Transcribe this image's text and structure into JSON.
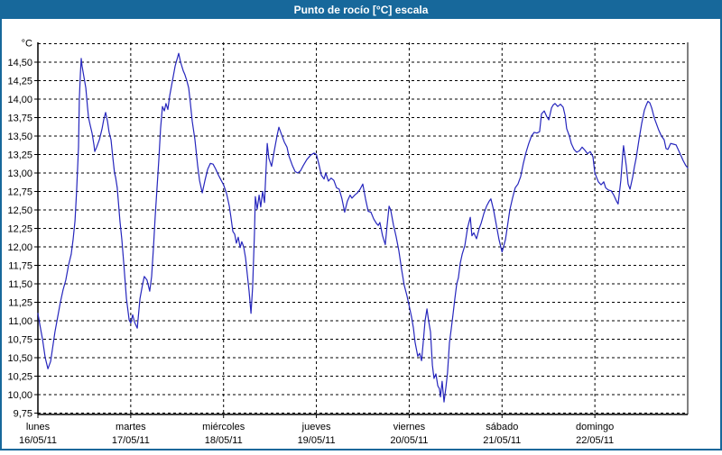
{
  "window": {
    "title": "Punto de rocío [°C] escala"
  },
  "colors": {
    "frame": "#17689B",
    "titlebar": "#17689B",
    "title_text": "#FFFFFF",
    "line": "#2626BD",
    "grid": "#000000",
    "text": "#000000",
    "plot_bg": "#FFFFFF"
  },
  "chart_data": {
    "type": "line",
    "title": "Punto de rocío [°C] escala",
    "y_unit_label": "°C",
    "decimal_separator": ",",
    "grid": "dashed",
    "legend": "none",
    "y_axis": {
      "min": 9.75,
      "max": 14.75,
      "tick_step": 0.25
    },
    "y_tick_labels": [
      "14,50",
      "14,25",
      "14,00",
      "13,75",
      "13,50",
      "13,25",
      "13,00",
      "12,75",
      "12,50",
      "12,25",
      "12,00",
      "11,75",
      "11,50",
      "11,25",
      "11,00",
      "10,75",
      "10,50",
      "10,25",
      "10,00",
      "9,75"
    ],
    "x_axis": {
      "hours_total": 168,
      "days": [
        {
          "name": "lunes",
          "date": "16/05/11"
        },
        {
          "name": "martes",
          "date": "17/05/11"
        },
        {
          "name": "miércoles",
          "date": "18/05/11"
        },
        {
          "name": "jueves",
          "date": "19/05/11"
        },
        {
          "name": "viernes",
          "date": "20/05/11"
        },
        {
          "name": "sábado",
          "date": "21/05/11"
        },
        {
          "name": "domingo",
          "date": "22/05/11"
        }
      ]
    },
    "series": [
      {
        "name": "Punto de rocío",
        "unit": "°C",
        "points": [
          [
            0.0,
            11.1
          ],
          [
            0.5,
            10.95
          ],
          [
            1.2,
            10.75
          ],
          [
            1.9,
            10.5
          ],
          [
            2.6,
            10.35
          ],
          [
            3.3,
            10.45
          ],
          [
            3.7,
            10.6
          ],
          [
            4.4,
            10.85
          ],
          [
            5.1,
            11.05
          ],
          [
            5.8,
            11.25
          ],
          [
            6.5,
            11.42
          ],
          [
            7.2,
            11.55
          ],
          [
            7.9,
            11.75
          ],
          [
            8.6,
            11.9
          ],
          [
            9.1,
            12.1
          ],
          [
            9.6,
            12.35
          ],
          [
            10.0,
            12.76
          ],
          [
            10.5,
            13.35
          ],
          [
            10.7,
            14.0
          ],
          [
            11.0,
            14.35
          ],
          [
            11.2,
            14.55
          ],
          [
            11.4,
            14.45
          ],
          [
            11.9,
            14.3
          ],
          [
            12.4,
            14.15
          ],
          [
            12.8,
            13.9
          ],
          [
            13.1,
            13.75
          ],
          [
            13.5,
            13.65
          ],
          [
            14.0,
            13.54
          ],
          [
            14.5,
            13.38
          ],
          [
            14.7,
            13.29
          ],
          [
            15.2,
            13.35
          ],
          [
            15.9,
            13.45
          ],
          [
            16.6,
            13.6
          ],
          [
            17.0,
            13.72
          ],
          [
            17.5,
            13.82
          ],
          [
            18.0,
            13.7
          ],
          [
            18.4,
            13.55
          ],
          [
            18.9,
            13.45
          ],
          [
            19.4,
            13.2
          ],
          [
            19.8,
            13.0
          ],
          [
            20.1,
            12.94
          ],
          [
            20.5,
            12.8
          ],
          [
            21.2,
            12.35
          ],
          [
            21.7,
            12.1
          ],
          [
            22.2,
            11.78
          ],
          [
            22.9,
            11.3
          ],
          [
            23.6,
            11.01
          ],
          [
            24.0,
            10.97
          ],
          [
            24.5,
            11.08
          ],
          [
            25.0,
            10.98
          ],
          [
            25.7,
            10.9
          ],
          [
            26.4,
            11.3
          ],
          [
            27.1,
            11.5
          ],
          [
            27.5,
            11.6
          ],
          [
            28.2,
            11.55
          ],
          [
            28.9,
            11.4
          ],
          [
            29.4,
            11.6
          ],
          [
            29.9,
            12.0
          ],
          [
            30.3,
            12.4
          ],
          [
            30.8,
            12.8
          ],
          [
            31.3,
            13.2
          ],
          [
            31.7,
            13.6
          ],
          [
            32.2,
            13.9
          ],
          [
            32.7,
            13.84
          ],
          [
            33.1,
            13.94
          ],
          [
            33.6,
            13.86
          ],
          [
            34.1,
            14.05
          ],
          [
            34.8,
            14.25
          ],
          [
            35.5,
            14.45
          ],
          [
            36.2,
            14.58
          ],
          [
            36.4,
            14.62
          ],
          [
            36.9,
            14.5
          ],
          [
            37.6,
            14.38
          ],
          [
            38.0,
            14.33
          ],
          [
            38.5,
            14.25
          ],
          [
            39.0,
            14.15
          ],
          [
            39.4,
            13.95
          ],
          [
            39.9,
            13.7
          ],
          [
            40.6,
            13.45
          ],
          [
            41.3,
            13.1
          ],
          [
            41.8,
            12.9
          ],
          [
            42.5,
            12.73
          ],
          [
            43.2,
            12.9
          ],
          [
            43.9,
            13.05
          ],
          [
            44.6,
            13.13
          ],
          [
            45.3,
            13.12
          ],
          [
            46.0,
            13.05
          ],
          [
            46.7,
            12.97
          ],
          [
            47.4,
            12.9
          ],
          [
            48.0,
            12.84
          ],
          [
            48.8,
            12.72
          ],
          [
            49.5,
            12.55
          ],
          [
            49.9,
            12.4
          ],
          [
            50.4,
            12.21
          ],
          [
            50.9,
            12.17
          ],
          [
            51.3,
            12.05
          ],
          [
            51.8,
            12.13
          ],
          [
            52.3,
            11.99
          ],
          [
            52.7,
            12.07
          ],
          [
            53.2,
            12.0
          ],
          [
            53.7,
            11.85
          ],
          [
            54.1,
            11.64
          ],
          [
            54.6,
            11.4
          ],
          [
            55.1,
            11.1
          ],
          [
            55.5,
            11.45
          ],
          [
            56.0,
            12.2
          ],
          [
            56.2,
            12.68
          ],
          [
            56.7,
            12.51
          ],
          [
            57.2,
            12.7
          ],
          [
            57.6,
            12.54
          ],
          [
            58.1,
            12.75
          ],
          [
            58.6,
            12.6
          ],
          [
            59.3,
            13.4
          ],
          [
            59.7,
            13.2
          ],
          [
            60.4,
            13.09
          ],
          [
            61.1,
            13.3
          ],
          [
            61.8,
            13.5
          ],
          [
            62.3,
            13.62
          ],
          [
            63.0,
            13.52
          ],
          [
            63.7,
            13.42
          ],
          [
            64.4,
            13.35
          ],
          [
            64.9,
            13.23
          ],
          [
            65.8,
            13.1
          ],
          [
            66.5,
            13.02
          ],
          [
            67.2,
            13.0
          ],
          [
            67.9,
            13.03
          ],
          [
            68.6,
            13.1
          ],
          [
            69.5,
            13.18
          ],
          [
            70.5,
            13.24
          ],
          [
            71.4,
            13.27
          ],
          [
            72.0,
            13.25
          ],
          [
            72.6,
            13.13
          ],
          [
            73.3,
            12.97
          ],
          [
            74.0,
            12.92
          ],
          [
            74.4,
            13.0
          ],
          [
            75.1,
            12.89
          ],
          [
            75.8,
            12.93
          ],
          [
            76.5,
            12.9
          ],
          [
            77.2,
            12.8
          ],
          [
            77.9,
            12.78
          ],
          [
            78.6,
            12.65
          ],
          [
            79.3,
            12.47
          ],
          [
            80.0,
            12.62
          ],
          [
            80.7,
            12.7
          ],
          [
            81.2,
            12.66
          ],
          [
            81.9,
            12.7
          ],
          [
            82.6,
            12.73
          ],
          [
            83.3,
            12.78
          ],
          [
            84.0,
            12.85
          ],
          [
            84.7,
            12.65
          ],
          [
            85.4,
            12.48
          ],
          [
            86.1,
            12.47
          ],
          [
            86.8,
            12.38
          ],
          [
            87.5,
            12.32
          ],
          [
            88.0,
            12.29
          ],
          [
            88.4,
            12.33
          ],
          [
            89.1,
            12.15
          ],
          [
            89.8,
            12.03
          ],
          [
            90.3,
            12.3
          ],
          [
            90.8,
            12.55
          ],
          [
            91.2,
            12.5
          ],
          [
            91.9,
            12.3
          ],
          [
            92.6,
            12.14
          ],
          [
            93.3,
            11.95
          ],
          [
            94.0,
            11.7
          ],
          [
            94.7,
            11.48
          ],
          [
            95.4,
            11.34
          ],
          [
            96.0,
            11.2
          ],
          [
            96.6,
            11.05
          ],
          [
            97.1,
            10.9
          ],
          [
            97.5,
            10.71
          ],
          [
            98.2,
            10.52
          ],
          [
            98.7,
            10.56
          ],
          [
            99.2,
            10.46
          ],
          [
            99.6,
            10.7
          ],
          [
            100.1,
            11.0
          ],
          [
            100.6,
            11.16
          ],
          [
            101.0,
            11.0
          ],
          [
            101.5,
            10.85
          ],
          [
            102.0,
            10.4
          ],
          [
            102.4,
            10.22
          ],
          [
            102.9,
            10.28
          ],
          [
            103.4,
            10.12
          ],
          [
            103.8,
            10.08
          ],
          [
            104.1,
            9.97
          ],
          [
            104.5,
            10.18
          ],
          [
            105.0,
            9.9
          ],
          [
            105.5,
            10.1
          ],
          [
            105.9,
            10.3
          ],
          [
            106.4,
            10.7
          ],
          [
            106.9,
            10.9
          ],
          [
            107.3,
            11.08
          ],
          [
            107.8,
            11.3
          ],
          [
            108.3,
            11.5
          ],
          [
            108.7,
            11.58
          ],
          [
            109.2,
            11.78
          ],
          [
            109.7,
            11.9
          ],
          [
            110.4,
            12.02
          ],
          [
            111.1,
            12.26
          ],
          [
            111.8,
            12.4
          ],
          [
            112.2,
            12.15
          ],
          [
            112.7,
            12.19
          ],
          [
            113.4,
            12.11
          ],
          [
            114.1,
            12.25
          ],
          [
            114.6,
            12.32
          ],
          [
            115.3,
            12.45
          ],
          [
            116.0,
            12.55
          ],
          [
            116.7,
            12.62
          ],
          [
            117.1,
            12.65
          ],
          [
            117.8,
            12.5
          ],
          [
            118.5,
            12.3
          ],
          [
            119.2,
            12.1
          ],
          [
            120.0,
            11.93
          ],
          [
            120.9,
            12.1
          ],
          [
            121.3,
            12.25
          ],
          [
            122.0,
            12.5
          ],
          [
            122.7,
            12.66
          ],
          [
            123.4,
            12.8
          ],
          [
            124.1,
            12.85
          ],
          [
            124.8,
            12.95
          ],
          [
            125.5,
            13.13
          ],
          [
            126.2,
            13.28
          ],
          [
            126.9,
            13.4
          ],
          [
            127.6,
            13.5
          ],
          [
            128.3,
            13.55
          ],
          [
            129.0,
            13.54
          ],
          [
            129.7,
            13.56
          ],
          [
            130.2,
            13.8
          ],
          [
            130.9,
            13.84
          ],
          [
            131.6,
            13.76
          ],
          [
            132.1,
            13.72
          ],
          [
            132.8,
            13.88
          ],
          [
            133.2,
            13.92
          ],
          [
            133.7,
            13.94
          ],
          [
            134.4,
            13.9
          ],
          [
            135.1,
            13.93
          ],
          [
            135.8,
            13.89
          ],
          [
            136.3,
            13.78
          ],
          [
            136.7,
            13.6
          ],
          [
            137.4,
            13.5
          ],
          [
            137.9,
            13.4
          ],
          [
            138.6,
            13.32
          ],
          [
            139.3,
            13.28
          ],
          [
            140.0,
            13.3
          ],
          [
            140.7,
            13.35
          ],
          [
            141.4,
            13.31
          ],
          [
            142.1,
            13.26
          ],
          [
            142.8,
            13.29
          ],
          [
            143.5,
            13.22
          ],
          [
            144.0,
            13.0
          ],
          [
            144.9,
            12.88
          ],
          [
            145.6,
            12.84
          ],
          [
            146.3,
            12.88
          ],
          [
            146.8,
            12.8
          ],
          [
            147.5,
            12.77
          ],
          [
            148.2,
            12.76
          ],
          [
            148.9,
            12.7
          ],
          [
            149.6,
            12.62
          ],
          [
            150.0,
            12.58
          ],
          [
            150.7,
            12.9
          ],
          [
            151.2,
            13.25
          ],
          [
            151.4,
            13.37
          ],
          [
            152.1,
            13.1
          ],
          [
            152.6,
            12.85
          ],
          [
            153.1,
            12.78
          ],
          [
            153.8,
            12.95
          ],
          [
            154.2,
            13.08
          ],
          [
            154.7,
            13.21
          ],
          [
            155.4,
            13.45
          ],
          [
            156.1,
            13.67
          ],
          [
            156.8,
            13.85
          ],
          [
            157.3,
            13.92
          ],
          [
            157.7,
            13.97
          ],
          [
            158.2,
            13.95
          ],
          [
            158.7,
            13.88
          ],
          [
            159.4,
            13.74
          ],
          [
            159.8,
            13.68
          ],
          [
            160.5,
            13.58
          ],
          [
            161.2,
            13.5
          ],
          [
            161.9,
            13.45
          ],
          [
            162.4,
            13.33
          ],
          [
            162.9,
            13.32
          ],
          [
            163.6,
            13.4
          ],
          [
            164.3,
            13.39
          ],
          [
            165.0,
            13.38
          ],
          [
            165.7,
            13.3
          ],
          [
            166.4,
            13.22
          ],
          [
            166.8,
            13.17
          ],
          [
            167.5,
            13.1
          ],
          [
            168.0,
            13.07
          ]
        ]
      }
    ]
  }
}
